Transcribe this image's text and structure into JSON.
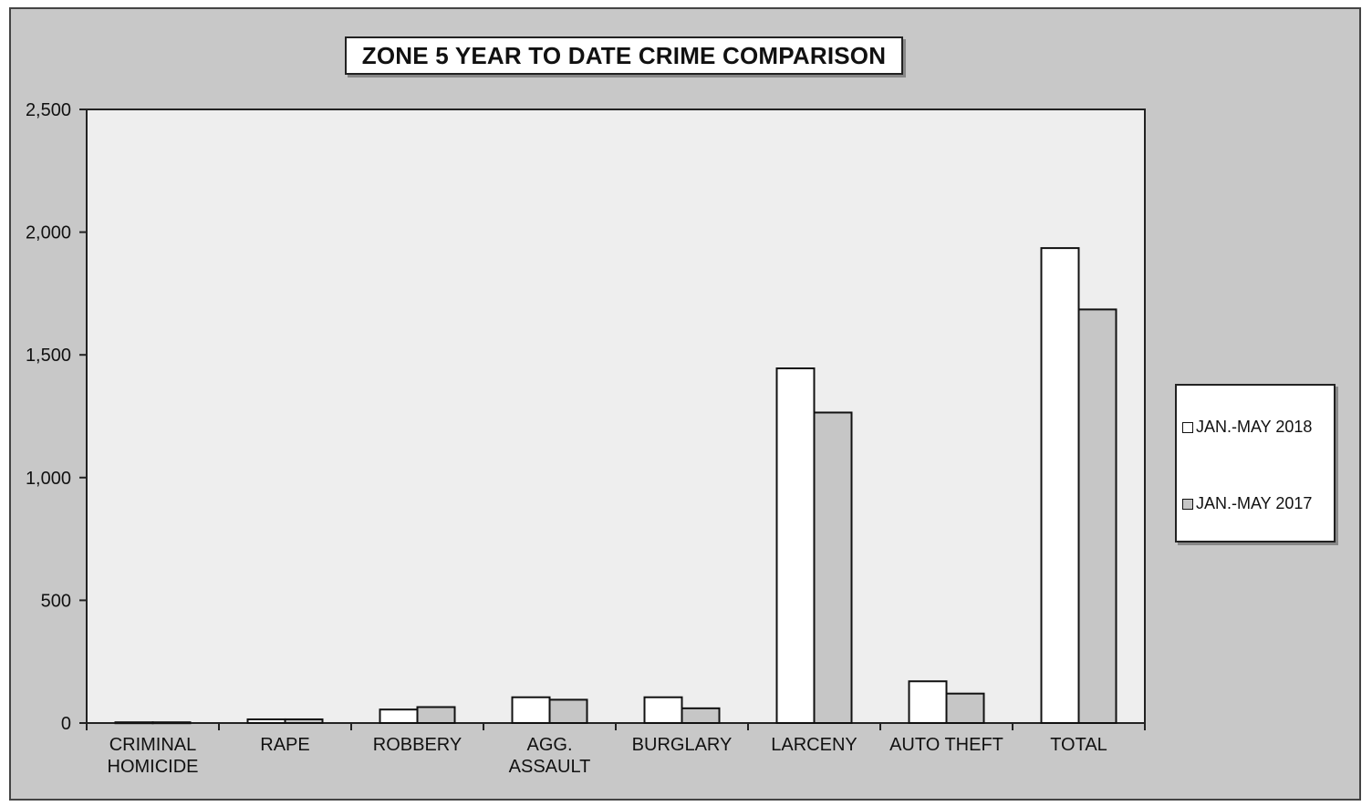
{
  "chart_data": {
    "type": "bar",
    "title": "ZONE 5  YEAR TO DATE CRIME COMPARISON",
    "categories": [
      [
        "CRIMINAL",
        "HOMICIDE"
      ],
      [
        "RAPE"
      ],
      [
        "ROBBERY"
      ],
      [
        "AGG.",
        "ASSAULT"
      ],
      [
        "BURGLARY"
      ],
      [
        "LARCENY"
      ],
      [
        "AUTO THEFT"
      ],
      [
        "TOTAL"
      ]
    ],
    "series": [
      {
        "name": "JAN.-MAY 2018",
        "color": "#ffffff",
        "values": [
          3,
          15,
          55,
          105,
          105,
          1445,
          170,
          1935
        ]
      },
      {
        "name": "JAN.-MAY 2017",
        "color": "#c6c6c6",
        "values": [
          3,
          15,
          65,
          95,
          60,
          1265,
          120,
          1685
        ]
      }
    ],
    "ylim": [
      0,
      2500
    ],
    "yticks": [
      0,
      500,
      1000,
      1500,
      2000,
      2500
    ],
    "ytick_labels": [
      "0",
      "500",
      "1,000",
      "1,500",
      "2,000",
      "2,500"
    ],
    "legend_position": "right",
    "plot_background": "#eeeeee",
    "chart_background": "#c8c8c8",
    "grid": false
  }
}
